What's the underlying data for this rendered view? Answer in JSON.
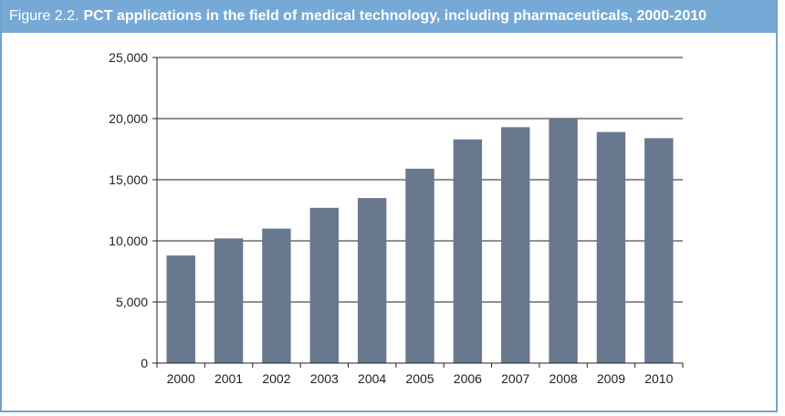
{
  "figure": {
    "prefix": "Figure 2.2.",
    "title": "PCT applications in the field of medical technology, including pharmaceuticals, 2000-2010"
  },
  "colors": {
    "header_bg": "#76a9d6",
    "bar": "#68788f"
  },
  "chart_data": {
    "type": "bar",
    "categories": [
      "2000",
      "2001",
      "2002",
      "2003",
      "2004",
      "2005",
      "2006",
      "2007",
      "2008",
      "2009",
      "2010"
    ],
    "values": [
      8800,
      10200,
      11000,
      12700,
      13500,
      15900,
      18300,
      19300,
      20000,
      18900,
      18400
    ],
    "ylim": [
      0,
      25000
    ],
    "yticks": [
      0,
      5000,
      10000,
      15000,
      20000,
      25000
    ],
    "ytick_labels": [
      "0",
      "5,000",
      "10,000",
      "15,000",
      "20,000",
      "25,000"
    ],
    "grid": true,
    "legend": "none"
  }
}
